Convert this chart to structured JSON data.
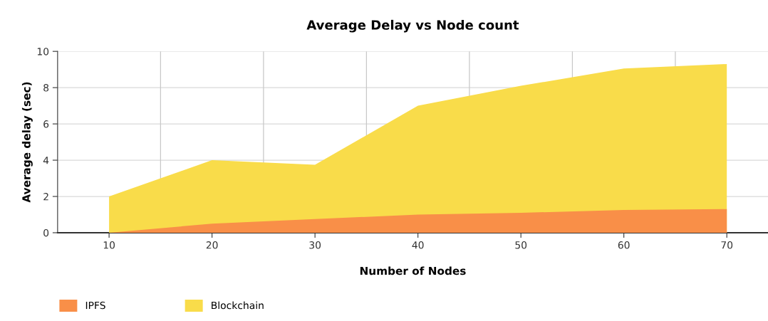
{
  "chart_data": {
    "type": "area",
    "title": "Average Delay vs Node count",
    "xlabel": "Number of Nodes",
    "ylabel": "Average delay (sec)",
    "x": [
      10,
      20,
      30,
      40,
      50,
      60,
      70
    ],
    "series": [
      {
        "name": "IPFS",
        "color": "#f98f48",
        "values": [
          0,
          0.5,
          0.75,
          1.0,
          1.1,
          1.25,
          1.3
        ]
      },
      {
        "name": "Blockchain",
        "color": "#f9dc4a",
        "values": [
          2,
          4,
          3.75,
          7,
          8.1,
          9.05,
          9.3
        ]
      }
    ],
    "xlim": [
      5,
      74
    ],
    "ylim": [
      0,
      10
    ],
    "xticks": [
      10,
      {
        "value": 15,
        "label": null
      },
      20,
      {
        "value": 25,
        "label": null
      },
      30,
      {
        "value": 35,
        "label": null
      },
      40,
      {
        "value": 45,
        "label": null
      },
      50,
      {
        "value": 55,
        "label": null
      },
      60,
      {
        "value": 65,
        "label": null
      },
      70
    ],
    "yticks": [
      0,
      2,
      4,
      6,
      8,
      10
    ],
    "grid": true,
    "legend": "bottom left"
  }
}
